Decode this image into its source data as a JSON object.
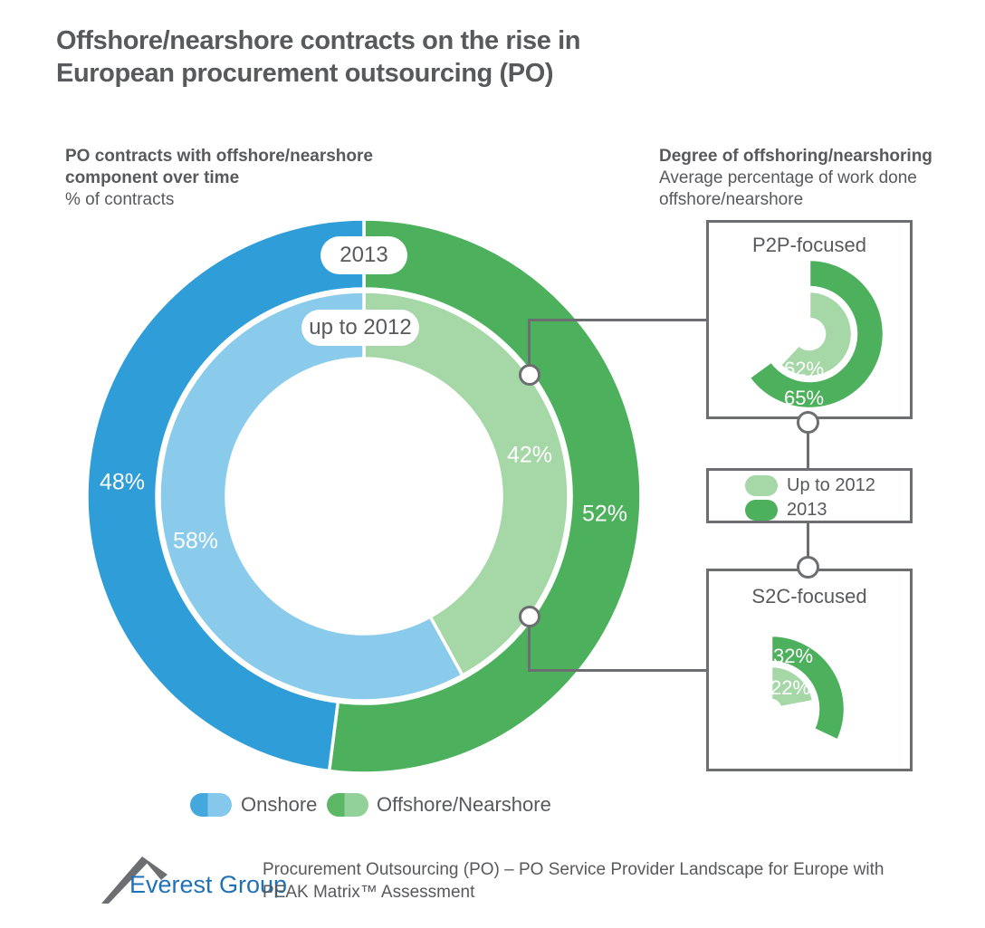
{
  "title": {
    "line1": "Offshore/nearshore contracts on the rise in",
    "line2": "European procurement outsourcing (PO)"
  },
  "left_heading": {
    "bold_line1": "PO contracts with offshore/nearshore",
    "bold_line2": "component over time",
    "sub": "% of contracts"
  },
  "right_heading": {
    "bold": "Degree of offshoring/nearshoring",
    "sub_line1": "Average percentage of work done",
    "sub_line2": "offshore/nearshore"
  },
  "colors": {
    "onshore_2013": "#2E9DD8",
    "onshore_up_to_2012": "#8ACBEC",
    "offshore_2013": "#4CB05C",
    "offshore_up_to_2012": "#A5D7A7",
    "text_gray": "#58595B",
    "line_gray": "#6D6E71",
    "brand_blue": "#1F72B8"
  },
  "chart_data": [
    {
      "type": "donut",
      "title": "PO contracts with offshore/nearshore component over time",
      "units": "% of contracts",
      "legend": [
        "Onshore",
        "Offshore/Nearshore"
      ],
      "rings": [
        {
          "name": "2013",
          "position": "outer",
          "segments": [
            {
              "label": "Offshore/Nearshore",
              "value": 52,
              "display": "52%",
              "color": "#4CB05C"
            },
            {
              "label": "Onshore",
              "value": 48,
              "display": "48%",
              "color": "#2E9DD8"
            }
          ]
        },
        {
          "name": "up to 2012",
          "position": "inner",
          "segments": [
            {
              "label": "Offshore/Nearshore",
              "value": 42,
              "display": "42%",
              "color": "#A5D7A7"
            },
            {
              "label": "Onshore",
              "value": 58,
              "display": "58%",
              "color": "#8ACBEC"
            }
          ]
        }
      ]
    },
    {
      "type": "donut",
      "title": "P2P-focused",
      "units": "Average percentage of work done offshore/nearshore",
      "series": [
        {
          "name": "2013",
          "position": "outer",
          "value": 65,
          "display": "65%",
          "color": "#4CB05C"
        },
        {
          "name": "Up to 2012",
          "position": "inner",
          "value": 62,
          "display": "62%",
          "color": "#A5D7A7"
        }
      ]
    },
    {
      "type": "donut",
      "title": "S2C-focused",
      "units": "Average percentage of work done offshore/nearshore",
      "series": [
        {
          "name": "2013",
          "position": "outer",
          "value": 32,
          "display": "32%",
          "color": "#4CB05C"
        },
        {
          "name": "Up to 2012",
          "position": "inner",
          "value": 22,
          "display": "22%",
          "color": "#A5D7A7"
        }
      ]
    }
  ],
  "detail_legend": {
    "items": [
      {
        "label": "Up to 2012",
        "color": "#A5D7A7"
      },
      {
        "label": "2013",
        "color": "#4CB05C"
      }
    ]
  },
  "bottom_legend": {
    "items": [
      {
        "label": "Onshore",
        "color_dark": "#45A8DC",
        "color_light": "#85C8EB"
      },
      {
        "label": "Offshore/Nearshore",
        "color_dark": "#5CB867",
        "color_light": "#92D19A"
      }
    ]
  },
  "footer": {
    "brand": "Everest Group",
    "caption_line1": "Procurement Outsourcing (PO) – PO Service Provider Landscape for Europe with",
    "caption_line2": "PEAK Matrix™ Assessment"
  }
}
